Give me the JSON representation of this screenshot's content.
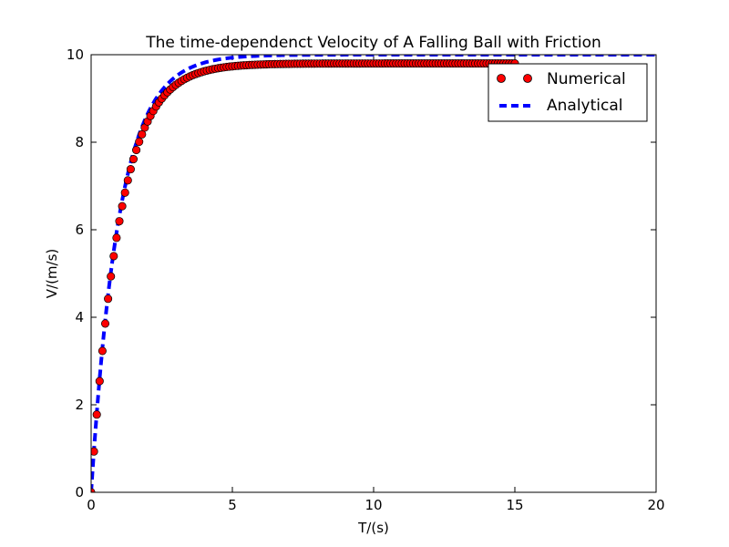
{
  "chart_data": {
    "type": "line",
    "title": "The time-dependenct Velocity of A Falling Ball with Friction",
    "xlabel": "T/(s)",
    "ylabel": "V/(m/s)",
    "xlim": [
      0,
      20
    ],
    "ylim": [
      0,
      10
    ],
    "xticks": [
      0,
      5,
      10,
      15,
      20
    ],
    "yticks": [
      0,
      2,
      4,
      6,
      8,
      10
    ],
    "xtick_labels": [
      "0",
      "5",
      "10",
      "15",
      "20"
    ],
    "ytick_labels": [
      "0",
      "2",
      "4",
      "6",
      "8",
      "10"
    ],
    "grid": false,
    "legend": {
      "position": "top-right",
      "entries": [
        "Numerical",
        "Analytical"
      ]
    },
    "series": [
      {
        "name": "Numerical",
        "style": "markers",
        "color": "#ff0000",
        "edge_color": "#000000",
        "x_start": 0,
        "x_end": 15,
        "x_step": 0.1,
        "plateau": 9.8,
        "rate": 1
      },
      {
        "name": "Analytical",
        "style": "dashed",
        "color": "#0000ff",
        "x_start": 0,
        "x_end": 20,
        "plateau": 10,
        "rate": 1
      }
    ]
  }
}
